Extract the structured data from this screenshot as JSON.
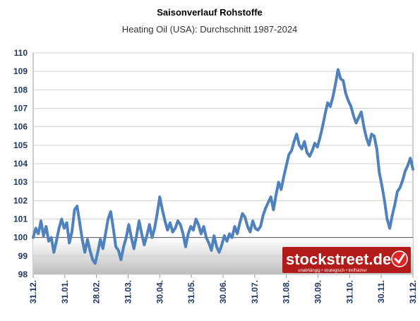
{
  "chart_data": {
    "type": "line",
    "title": "Saisonverlauf Rohstoffe",
    "subtitle": "Heating Oil (USA): Durchschnitt 1987-2024",
    "xlabel": "",
    "ylabel": "",
    "ylim": [
      98,
      110
    ],
    "yticks": [
      98,
      99,
      100,
      101,
      102,
      103,
      104,
      105,
      106,
      107,
      108,
      109,
      110
    ],
    "xticks": [
      "31.12.",
      "31.01.",
      "28.02.",
      "31.03.",
      "30.04.",
      "31.05.",
      "30.06.",
      "31.07.",
      "31.08.",
      "30.09.",
      "31.10.",
      "30.11.",
      "31.12."
    ],
    "grid": true,
    "legend": "none",
    "reference_line": 100,
    "series": [
      {
        "color": "#4f81bd",
        "values": [
          100.0,
          100.5,
          100.2,
          100.9,
          100.1,
          100.6,
          99.8,
          100.0,
          99.2,
          99.8,
          100.5,
          101.0,
          100.5,
          100.8,
          99.7,
          100.3,
          101.5,
          101.7,
          100.8,
          99.9,
          99.2,
          99.9,
          99.3,
          98.8,
          98.6,
          99.2,
          99.9,
          99.4,
          100.2,
          101.0,
          101.4,
          100.5,
          99.5,
          99.3,
          98.8,
          99.5,
          100.0,
          100.7,
          100.0,
          99.4,
          100.1,
          100.9,
          100.2,
          99.6,
          100.1,
          100.7,
          100.0,
          100.5,
          101.3,
          102.2,
          101.5,
          100.9,
          100.4,
          100.8,
          100.3,
          100.5,
          100.9,
          100.7,
          100.2,
          99.5,
          100.2,
          100.6,
          100.4,
          101.0,
          100.7,
          100.2,
          100.6,
          100.0,
          99.7,
          99.3,
          100.1,
          99.5,
          99.2,
          99.6,
          100.1,
          99.8,
          100.2,
          100.0,
          100.6,
          100.2,
          100.8,
          101.3,
          101.1,
          100.6,
          100.3,
          100.9,
          100.5,
          100.4,
          100.6,
          101.2,
          101.6,
          101.9,
          102.2,
          101.5,
          102.3,
          103.0,
          102.6,
          103.3,
          103.9,
          104.5,
          104.7,
          105.2,
          105.6,
          105.0,
          104.8,
          105.2,
          104.6,
          104.4,
          104.7,
          105.1,
          104.9,
          105.4,
          106.0,
          106.7,
          107.3,
          107.1,
          107.6,
          108.3,
          109.1,
          108.6,
          108.5,
          107.8,
          107.4,
          107.1,
          106.6,
          106.2,
          106.5,
          106.8,
          106.0,
          105.4,
          105.0,
          105.6,
          105.5,
          104.8,
          103.5,
          102.8,
          102.0,
          101.0,
          100.5,
          101.2,
          101.8,
          102.5,
          102.7,
          103.1,
          103.6,
          103.9,
          104.3,
          103.7
        ]
      }
    ]
  },
  "brand": {
    "name": "stockstreet.de",
    "tagline": "unabhängig • strategisch • treffsicher",
    "bg_color": "#b31b1b",
    "badge_color": "#e32424"
  }
}
